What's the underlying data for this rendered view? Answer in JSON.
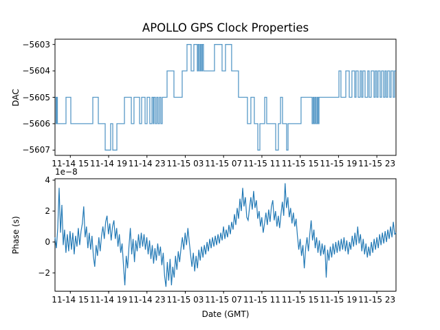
{
  "figure": {
    "title": "APOLLO GPS Clock Properties",
    "background_color": "#ffffff",
    "line_color": "#1f77b4",
    "axis_color": "#000000"
  },
  "chart_data": [
    {
      "type": "line",
      "subtype": "step",
      "title": "APOLLO GPS Clock Properties",
      "xlabel": "",
      "ylabel": "DAC",
      "grid": false,
      "legend": null,
      "x_unit": "hours since 11-14 00:00 GMT",
      "xlim": [
        13.4,
        49.0
      ],
      "ylim": [
        -5607.2,
        -5602.8
      ],
      "yticks": [
        -5603,
        -5604,
        -5605,
        -5606,
        -5607
      ],
      "xticks": [
        15,
        19,
        23,
        27,
        31,
        35,
        39,
        43,
        47
      ],
      "xtick_labels": [
        "11-14 15",
        "11-14 19",
        "11-14 23",
        "11-15 03",
        "11-15 07",
        "11-15 11",
        "11-15 15",
        "11-15 19",
        "11-15 23"
      ],
      "series": [
        {
          "name": "DAC",
          "color": "#1f77b4",
          "opacity": 0.75,
          "step_points": [
            [
              13.4,
              -5605
            ],
            [
              13.51,
              -5606
            ],
            [
              13.58,
              -5605
            ],
            [
              13.65,
              -5606
            ],
            [
              14.55,
              -5605
            ],
            [
              15.05,
              -5606
            ],
            [
              17.35,
              -5605
            ],
            [
              17.92,
              -5606
            ],
            [
              18.64,
              -5607
            ],
            [
              19.21,
              -5606
            ],
            [
              19.43,
              -5607
            ],
            [
              19.86,
              -5606
            ],
            [
              20.65,
              -5605
            ],
            [
              21.37,
              -5606
            ],
            [
              21.65,
              -5605
            ],
            [
              22.23,
              -5606
            ],
            [
              22.44,
              -5605
            ],
            [
              22.8,
              -5606
            ],
            [
              23.02,
              -5605
            ],
            [
              23.3,
              -5606
            ],
            [
              23.52,
              -5605
            ],
            [
              23.66,
              -5606
            ],
            [
              23.73,
              -5605
            ],
            [
              23.88,
              -5606
            ],
            [
              24.02,
              -5605
            ],
            [
              24.16,
              -5606
            ],
            [
              24.31,
              -5605
            ],
            [
              24.45,
              -5606
            ],
            [
              24.6,
              -5605
            ],
            [
              25.1,
              -5604
            ],
            [
              25.82,
              -5605
            ],
            [
              26.68,
              -5604
            ],
            [
              27.18,
              -5603
            ],
            [
              27.61,
              -5604
            ],
            [
              27.9,
              -5603
            ],
            [
              28.26,
              -5604
            ],
            [
              28.36,
              -5603
            ],
            [
              28.47,
              -5604
            ],
            [
              28.58,
              -5603
            ],
            [
              28.69,
              -5604
            ],
            [
              28.79,
              -5603
            ],
            [
              28.9,
              -5604
            ],
            [
              30.05,
              -5603
            ],
            [
              30.84,
              -5604
            ],
            [
              31.2,
              -5603
            ],
            [
              31.84,
              -5604
            ],
            [
              32.56,
              -5605
            ],
            [
              33.49,
              -5606
            ],
            [
              33.85,
              -5605
            ],
            [
              34.21,
              -5606
            ],
            [
              34.57,
              -5607
            ],
            [
              34.79,
              -5606
            ],
            [
              35.29,
              -5605
            ],
            [
              35.5,
              -5606
            ],
            [
              36.44,
              -5607
            ],
            [
              36.72,
              -5606
            ],
            [
              36.94,
              -5605
            ],
            [
              37.15,
              -5606
            ],
            [
              37.58,
              -5607
            ],
            [
              37.73,
              -5606
            ],
            [
              39.09,
              -5605
            ],
            [
              40.24,
              -5606
            ],
            [
              40.35,
              -5605
            ],
            [
              40.45,
              -5606
            ],
            [
              40.56,
              -5605
            ],
            [
              40.67,
              -5606
            ],
            [
              40.78,
              -5605
            ],
            [
              40.88,
              -5606
            ],
            [
              40.96,
              -5605
            ],
            [
              43.04,
              -5604
            ],
            [
              43.25,
              -5605
            ],
            [
              43.76,
              -5604
            ],
            [
              44.12,
              -5605
            ],
            [
              44.4,
              -5604
            ],
            [
              44.69,
              -5605
            ],
            [
              44.83,
              -5604
            ],
            [
              45.05,
              -5605
            ],
            [
              45.26,
              -5604
            ],
            [
              45.41,
              -5605
            ],
            [
              45.55,
              -5604
            ],
            [
              45.77,
              -5605
            ],
            [
              46.05,
              -5604
            ],
            [
              46.2,
              -5605
            ],
            [
              46.41,
              -5604
            ],
            [
              46.7,
              -5605
            ],
            [
              46.84,
              -5604
            ],
            [
              46.99,
              -5605
            ],
            [
              47.13,
              -5604
            ],
            [
              47.34,
              -5605
            ],
            [
              47.49,
              -5604
            ],
            [
              47.7,
              -5605
            ],
            [
              47.85,
              -5604
            ],
            [
              47.99,
              -5605
            ],
            [
              48.13,
              -5604
            ],
            [
              48.35,
              -5605
            ],
            [
              48.49,
              -5604
            ],
            [
              48.71,
              -5605
            ],
            [
              48.85,
              -5604
            ]
          ]
        }
      ]
    },
    {
      "type": "line",
      "xlabel": "Date (GMT)",
      "ylabel": "Phase (s)",
      "offset_text": "1e−8",
      "y_scale": 1e-08,
      "grid": false,
      "legend": null,
      "x_unit": "hours since 11-14 00:00 GMT",
      "xlim": [
        13.4,
        49.0
      ],
      "ylim": [
        -3.18,
        4.09
      ],
      "yticks": [
        -2,
        0,
        2,
        4
      ],
      "xticks": [
        15,
        19,
        23,
        27,
        31,
        35,
        39,
        43,
        47
      ],
      "xtick_labels": [
        "11-14 15",
        "11-14 19",
        "11-14 23",
        "11-15 03",
        "11-15 07",
        "11-15 11",
        "11-15 15",
        "11-15 19",
        "11-15 23"
      ],
      "series": [
        {
          "name": "Phase",
          "color": "#1f77b4",
          "opacity": 1,
          "t0": 13.4,
          "dt": 0.143,
          "values": [
            0.3,
            -0.4,
            0.9,
            3.5,
            0.6,
            2.4,
            -0.2,
            0.8,
            -0.7,
            0.5,
            -0.6,
            0.7,
            -0.5,
            0.6,
            -0.8,
            0.4,
            -0.3,
            0.9,
            -0.2,
            0.7,
            1.2,
            2.3,
            0.3,
            1.0,
            -0.4,
            0.6,
            -0.5,
            0.4,
            -0.9,
            -1.6,
            -0.2,
            -0.9,
            0.3,
            -0.6,
            0.4,
            1.0,
            0.2,
            1.3,
            1.7,
            0.5,
            1.2,
            0.1,
            1.0,
            1.4,
            0.2,
            0.9,
            -0.3,
            0.5,
            -0.7,
            -0.1,
            -1.5,
            -2.8,
            -0.9,
            -1.7,
            -0.3,
            0.9,
            -0.8,
            0.2,
            -1.3,
            0.1,
            -0.6,
            0.5,
            -0.4,
            0.6,
            -0.3,
            0.5,
            -0.5,
            0.3,
            -0.8,
            0.1,
            -1.1,
            -0.2,
            -1.4,
            -0.4,
            -1.2,
            -0.1,
            -0.9,
            -0.3,
            -1.5,
            -0.7,
            -2.2,
            -2.9,
            -1.3,
            -2.5,
            -1.1,
            -2.8,
            -1.6,
            -2.3,
            -0.9,
            -1.8,
            -0.6,
            -1.3,
            -0.4,
            0.3,
            -0.5,
            0.6,
            -0.2,
            0.9,
            0.0,
            -0.8,
            -1.6,
            -0.7,
            -1.9,
            -0.9,
            -1.7,
            -0.5,
            -1.2,
            -0.3,
            -1.0,
            -0.2,
            -0.8,
            0.0,
            -0.6,
            0.2,
            -0.4,
            0.3,
            -0.3,
            0.4,
            -0.2,
            0.5,
            -0.1,
            0.6,
            0.1,
            1.0,
            0.2,
            0.8,
            0.3,
            1.1,
            0.5,
            1.3,
            0.8,
            1.8,
            1.1,
            2.2,
            1.5,
            2.8,
            2.0,
            3.5,
            2.3,
            2.9,
            1.6,
            1.4,
            2.2,
            2.9,
            2.1,
            3.3,
            2.2,
            2.7,
            1.5,
            2.0,
            1.0,
            1.6,
            0.6,
            1.2,
            1.9,
            1.1,
            2.1,
            1.3,
            2.3,
            2.7,
            1.4,
            2.0,
            1.0,
            1.7,
            0.9,
            1.8,
            2.6,
            1.7,
            3.8,
            2.2,
            2.9,
            1.6,
            2.2,
            1.2,
            1.9,
            1.0,
            1.5,
            0.4,
            -0.5,
            0.2,
            -0.9,
            -0.2,
            -1.7,
            -0.4,
            0.3,
            -0.6,
            0.5,
            1.4,
            0.1,
            0.8,
            -0.4,
            0.3,
            -0.7,
            0.1,
            -0.9,
            -0.1,
            -0.8,
            -0.2,
            -2.3,
            -0.5,
            -1.2,
            -0.3,
            -1.0,
            -0.1,
            -0.8,
            0.0,
            -0.7,
            0.1,
            -0.6,
            0.2,
            -0.5,
            0.3,
            -0.6,
            0.1,
            -0.8,
            0.0,
            -0.5,
            0.4,
            -0.3,
            0.6,
            -0.2,
            1.0,
            -0.1,
            0.5,
            -0.6,
            0.2,
            -0.8,
            -0.1,
            -1.0,
            -0.3,
            -0.9,
            0.0,
            -0.7,
            0.2,
            -0.5,
            0.3,
            -0.4,
            0.5,
            -0.2,
            0.6,
            -0.1,
            0.7,
            0.0,
            0.8,
            0.2,
            1.0,
            0.3,
            1.3,
            0.5,
            0.6
          ]
        }
      ]
    }
  ]
}
